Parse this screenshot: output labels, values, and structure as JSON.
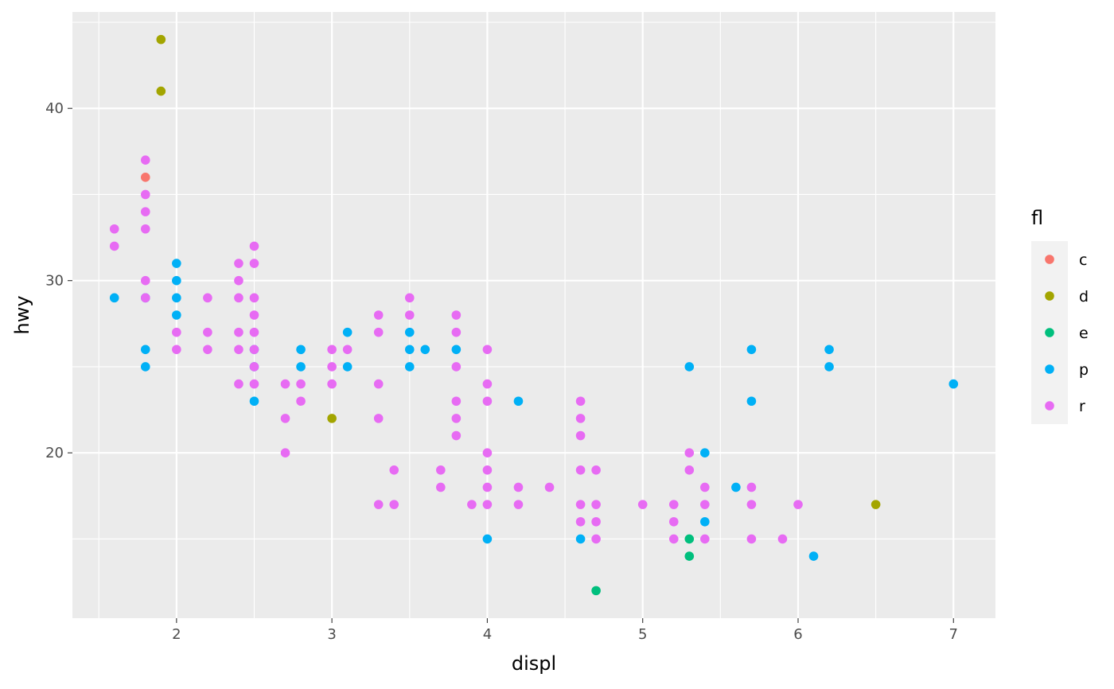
{
  "chart_data": {
    "type": "scatter",
    "xlabel": "displ",
    "ylabel": "hwy",
    "xlim": [
      1.33,
      7.27
    ],
    "ylim": [
      10.4,
      45.6
    ],
    "x_ticks": [
      2,
      3,
      4,
      5,
      6,
      7
    ],
    "y_ticks": [
      20,
      30,
      40
    ],
    "x_tick_labels": [
      "2",
      "3",
      "4",
      "5",
      "6",
      "7"
    ],
    "y_tick_labels": [
      "20",
      "30",
      "40"
    ],
    "grid": true,
    "legend": {
      "title": "fl",
      "position": "right",
      "entries": [
        {
          "label": "c",
          "color": "#F8766D"
        },
        {
          "label": "d",
          "color": "#A3A500"
        },
        {
          "label": "e",
          "color": "#00BF7D"
        },
        {
          "label": "p",
          "color": "#00B0F6"
        },
        {
          "label": "r",
          "color": "#E76BF3"
        }
      ]
    },
    "series": [
      {
        "name": "c",
        "color": "#F8766D",
        "points": [
          [
            1.8,
            36
          ]
        ]
      },
      {
        "name": "d",
        "color": "#A3A500",
        "points": [
          [
            1.9,
            44
          ],
          [
            1.9,
            41
          ],
          [
            3.0,
            22
          ],
          [
            6.5,
            17
          ]
        ]
      },
      {
        "name": "e",
        "color": "#00BF7D",
        "points": [
          [
            4.7,
            12
          ],
          [
            5.3,
            15
          ],
          [
            5.3,
            14
          ]
        ]
      },
      {
        "name": "p",
        "color": "#00B0F6",
        "points": [
          [
            1.6,
            29
          ],
          [
            1.8,
            29
          ],
          [
            1.8,
            26
          ],
          [
            1.8,
            25
          ],
          [
            2.0,
            31
          ],
          [
            2.0,
            30
          ],
          [
            2.0,
            29
          ],
          [
            2.0,
            28
          ],
          [
            2.5,
            26
          ],
          [
            2.5,
            25
          ],
          [
            2.5,
            23
          ],
          [
            2.8,
            26
          ],
          [
            2.8,
            25
          ],
          [
            3.1,
            27
          ],
          [
            3.1,
            25
          ],
          [
            3.5,
            27
          ],
          [
            3.5,
            26
          ],
          [
            3.5,
            25
          ],
          [
            3.6,
            26
          ],
          [
            3.8,
            26
          ],
          [
            4.0,
            15
          ],
          [
            4.2,
            23
          ],
          [
            4.6,
            15
          ],
          [
            5.3,
            25
          ],
          [
            5.4,
            20
          ],
          [
            5.4,
            16
          ],
          [
            5.6,
            18
          ],
          [
            5.7,
            26
          ],
          [
            5.7,
            23
          ],
          [
            6.1,
            14
          ],
          [
            6.2,
            26
          ],
          [
            6.2,
            25
          ],
          [
            7.0,
            24
          ]
        ]
      },
      {
        "name": "r",
        "color": "#E76BF3",
        "points": [
          [
            1.6,
            33
          ],
          [
            1.6,
            32
          ],
          [
            1.8,
            37
          ],
          [
            1.8,
            35
          ],
          [
            1.8,
            34
          ],
          [
            1.8,
            33
          ],
          [
            1.8,
            30
          ],
          [
            1.8,
            29
          ],
          [
            2.0,
            27
          ],
          [
            2.0,
            26
          ],
          [
            2.2,
            29
          ],
          [
            2.2,
            27
          ],
          [
            2.2,
            26
          ],
          [
            2.4,
            31
          ],
          [
            2.4,
            30
          ],
          [
            2.4,
            29
          ],
          [
            2.4,
            27
          ],
          [
            2.4,
            26
          ],
          [
            2.4,
            24
          ],
          [
            2.5,
            32
          ],
          [
            2.5,
            31
          ],
          [
            2.5,
            29
          ],
          [
            2.5,
            28
          ],
          [
            2.5,
            27
          ],
          [
            2.5,
            26
          ],
          [
            2.5,
            25
          ],
          [
            2.5,
            24
          ],
          [
            2.7,
            24
          ],
          [
            2.7,
            22
          ],
          [
            2.7,
            20
          ],
          [
            2.8,
            24
          ],
          [
            2.8,
            23
          ],
          [
            3.0,
            26
          ],
          [
            3.0,
            25
          ],
          [
            3.0,
            24
          ],
          [
            3.1,
            26
          ],
          [
            3.3,
            28
          ],
          [
            3.3,
            27
          ],
          [
            3.3,
            24
          ],
          [
            3.3,
            22
          ],
          [
            3.3,
            17
          ],
          [
            3.4,
            19
          ],
          [
            3.4,
            17
          ],
          [
            3.5,
            29
          ],
          [
            3.5,
            28
          ],
          [
            3.7,
            19
          ],
          [
            3.7,
            18
          ],
          [
            3.8,
            28
          ],
          [
            3.8,
            27
          ],
          [
            3.8,
            25
          ],
          [
            3.8,
            23
          ],
          [
            3.8,
            22
          ],
          [
            3.8,
            21
          ],
          [
            3.9,
            17
          ],
          [
            4.0,
            26
          ],
          [
            4.0,
            24
          ],
          [
            4.0,
            23
          ],
          [
            4.0,
            20
          ],
          [
            4.0,
            19
          ],
          [
            4.0,
            18
          ],
          [
            4.0,
            17
          ],
          [
            4.2,
            18
          ],
          [
            4.2,
            17
          ],
          [
            4.4,
            18
          ],
          [
            4.6,
            23
          ],
          [
            4.6,
            22
          ],
          [
            4.6,
            21
          ],
          [
            4.6,
            19
          ],
          [
            4.6,
            17
          ],
          [
            4.6,
            16
          ],
          [
            4.7,
            19
          ],
          [
            4.7,
            17
          ],
          [
            4.7,
            16
          ],
          [
            4.7,
            15
          ],
          [
            5.0,
            17
          ],
          [
            5.2,
            17
          ],
          [
            5.2,
            16
          ],
          [
            5.2,
            15
          ],
          [
            5.3,
            20
          ],
          [
            5.3,
            19
          ],
          [
            5.4,
            18
          ],
          [
            5.4,
            17
          ],
          [
            5.4,
            15
          ],
          [
            5.7,
            18
          ],
          [
            5.7,
            17
          ],
          [
            5.7,
            15
          ],
          [
            5.9,
            15
          ],
          [
            6.0,
            17
          ]
        ]
      }
    ]
  }
}
